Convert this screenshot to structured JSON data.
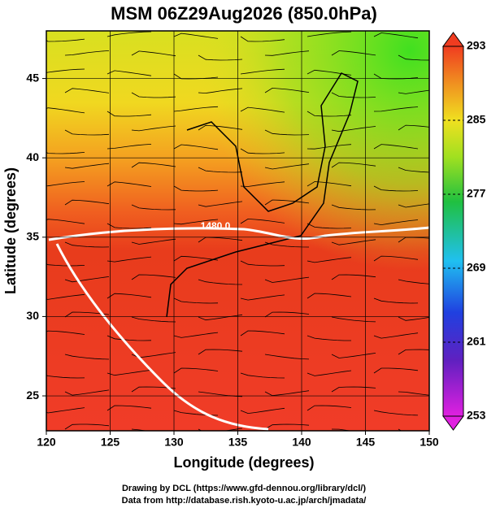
{
  "chart_data": {
    "type": "map",
    "title": "MSM 06Z29Aug2026 (850.0hPa)",
    "xlabel": "Longitude (degrees)",
    "ylabel": "Latitude  (degrees)",
    "xlim": [
      120,
      150
    ],
    "ylim": [
      22.8,
      48
    ],
    "xticks": [
      120,
      125,
      130,
      135,
      140,
      145,
      150
    ],
    "yticks": [
      25,
      30,
      35,
      40,
      45
    ],
    "grid": true,
    "colorbar": {
      "lim": [
        253,
        293
      ],
      "ticks": [
        253,
        261,
        269,
        277,
        285,
        293
      ]
    },
    "annotations": [
      "1480.0"
    ],
    "footer": [
      "Drawing by DCL (https://www.gfd-dennou.org/library/dcl/)",
      "Data from http://database.rish.kyoto-u.ac.jp/arch/jmadata/"
    ]
  }
}
